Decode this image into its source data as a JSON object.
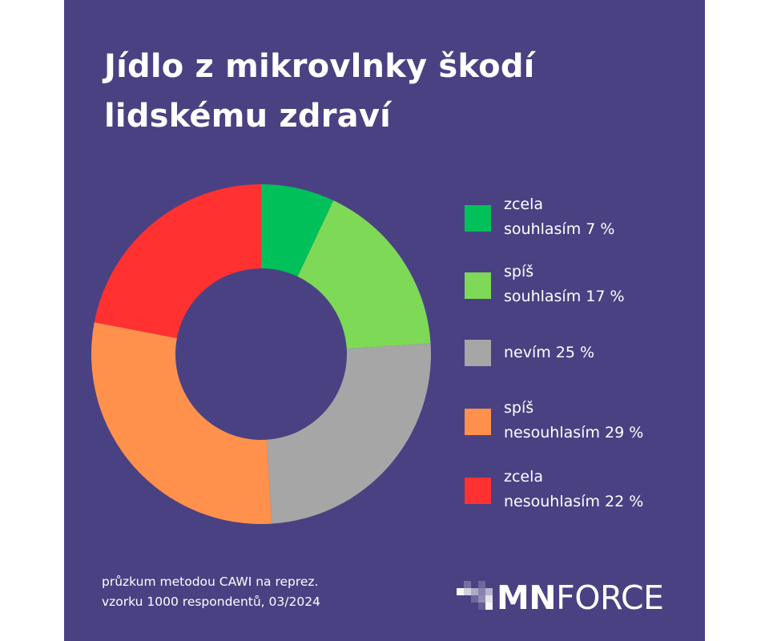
{
  "title": "Jídlo z mikrovlnky škodí lidskému zdraví",
  "chart_data": {
    "type": "pie",
    "donut": true,
    "title": "Jídlo z mikrovlnky škodí lidskému zdraví",
    "unit": "%",
    "legend_position": "right",
    "categories": [
      "zcela souhlasím",
      "spíš souhlasím",
      "nevím",
      "spíš nesouhlasím",
      "zcela nesouhlasím"
    ],
    "values": [
      7,
      17,
      25,
      29,
      22
    ],
    "colors": [
      "#00c05a",
      "#7ed957",
      "#a6a6a6",
      "#ff914d",
      "#ff3131"
    ]
  },
  "legend": [
    {
      "text": "zcela\nsouhlasím 7 %",
      "color": "#00c05a"
    },
    {
      "text": "spíš\nsouhlasím 17 %",
      "color": "#7ed957"
    },
    {
      "text": "nevím 25 %",
      "color": "#a6a6a6"
    },
    {
      "text": "spíš\nnesouhlasím 29 %",
      "color": "#ff914d"
    },
    {
      "text": "zcela\nnesouhlasím 22 %",
      "color": "#ff3131"
    }
  ],
  "footnote": "průzkum metodou CAWI na reprez.\nvzorku 1000 respondentů, 03/2024",
  "logo": {
    "bold": "MN",
    "light": "FORCE"
  },
  "colors": {
    "background": "#4a4183",
    "text": "#ffffff"
  }
}
